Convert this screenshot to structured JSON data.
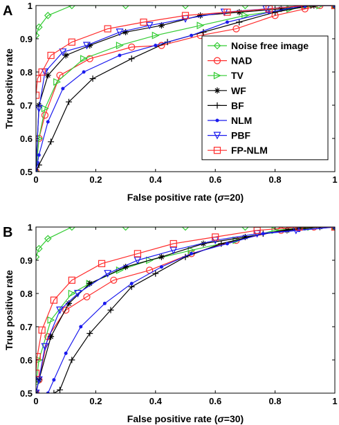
{
  "chart_data": [
    {
      "panel_label": "A",
      "type": "line",
      "xlabel": "False positive rate (σ=20)",
      "xlabel_prefix": "False positive rate (",
      "xlabel_sigma": "σ",
      "xlabel_suffix": "=20)",
      "ylabel": "True positive rate",
      "xlim": [
        0,
        1
      ],
      "ylim": [
        0.5,
        1
      ],
      "xticks": [
        "0",
        "0.2",
        "0.4",
        "0.6",
        "0.8",
        "1"
      ],
      "yticks": [
        "0.5",
        "0.6",
        "0.7",
        "0.8",
        "0.9",
        "1"
      ],
      "grid": false,
      "legend_position": "lower-right",
      "series": [
        {
          "name": "Noise free image",
          "color": "#33cc33",
          "marker": "diamond",
          "x": [
            0,
            0.01,
            0.04,
            0.12,
            0.3,
            0.5,
            0.7,
            0.9,
            1
          ],
          "y": [
            0.91,
            0.935,
            0.97,
            1,
            1,
            1,
            1,
            1,
            1
          ]
        },
        {
          "name": "NAD",
          "color": "#ff2a2a",
          "marker": "circle",
          "x": [
            0,
            0.01,
            0.03,
            0.08,
            0.18,
            0.32,
            0.42,
            0.55,
            0.67,
            0.8,
            0.9,
            0.95,
            1
          ],
          "y": [
            0.5,
            0.6,
            0.67,
            0.79,
            0.84,
            0.875,
            0.88,
            0.91,
            0.93,
            0.97,
            0.99,
            1,
            1
          ]
        },
        {
          "name": "TV",
          "color": "#33cc33",
          "marker": "triangle-right",
          "x": [
            0,
            0.01,
            0.03,
            0.07,
            0.16,
            0.28,
            0.4,
            0.55,
            0.7,
            0.85,
            0.95,
            1
          ],
          "y": [
            0.5,
            0.6,
            0.69,
            0.77,
            0.84,
            0.88,
            0.91,
            0.94,
            0.97,
            0.99,
            1,
            1
          ]
        },
        {
          "name": "WF",
          "color": "#000000",
          "marker": "star",
          "x": [
            0,
            0.01,
            0.04,
            0.1,
            0.18,
            0.3,
            0.42,
            0.55,
            0.68,
            0.82,
            0.93,
            1
          ],
          "y": [
            0.5,
            0.7,
            0.79,
            0.85,
            0.88,
            0.92,
            0.94,
            0.97,
            0.98,
            0.99,
            1,
            1
          ]
        },
        {
          "name": "BF",
          "color": "#000000",
          "marker": "plus",
          "x": [
            0,
            0.01,
            0.05,
            0.11,
            0.19,
            0.32,
            0.44,
            0.56,
            0.68,
            0.8,
            0.92,
            1
          ],
          "y": [
            0.5,
            0.52,
            0.59,
            0.71,
            0.78,
            0.84,
            0.89,
            0.92,
            0.95,
            0.98,
            1,
            1
          ]
        },
        {
          "name": "NLM",
          "color": "#1a1aee",
          "marker": "dot",
          "x": [
            0,
            0.01,
            0.04,
            0.09,
            0.16,
            0.28,
            0.4,
            0.52,
            0.64,
            0.78,
            0.9,
            1
          ],
          "y": [
            0.5,
            0.55,
            0.65,
            0.75,
            0.8,
            0.85,
            0.88,
            0.91,
            0.95,
            0.98,
            1,
            1
          ]
        },
        {
          "name": "PBF",
          "color": "#1a1aee",
          "marker": "triangle-down",
          "x": [
            0,
            0.01,
            0.03,
            0.09,
            0.17,
            0.28,
            0.38,
            0.5,
            0.63,
            0.77,
            0.9,
            1
          ],
          "y": [
            0.52,
            0.69,
            0.8,
            0.86,
            0.88,
            0.92,
            0.94,
            0.96,
            0.98,
            0.99,
            1,
            1
          ]
        },
        {
          "name": "FP-NLM",
          "color": "#ff2a2a",
          "marker": "square",
          "x": [
            0,
            0.005,
            0.02,
            0.05,
            0.12,
            0.24,
            0.36,
            0.5,
            0.64,
            0.78,
            0.9,
            1
          ],
          "y": [
            0.73,
            0.78,
            0.8,
            0.85,
            0.89,
            0.93,
            0.95,
            0.97,
            0.98,
            0.99,
            1,
            1
          ]
        }
      ]
    },
    {
      "panel_label": "B",
      "type": "line",
      "xlabel": "False positive rate (σ=30)",
      "xlabel_prefix": "False positive rate (",
      "xlabel_sigma": "σ",
      "xlabel_suffix": "=30)",
      "ylabel": "True positive rate",
      "xlim": [
        0,
        1
      ],
      "ylim": [
        0.5,
        1
      ],
      "xticks": [
        "0",
        "0.2",
        "0.4",
        "0.6",
        "0.8",
        "1"
      ],
      "yticks": [
        "0.5",
        "0.6",
        "0.7",
        "0.8",
        "0.9",
        "1"
      ],
      "grid": false,
      "series": [
        {
          "name": "Noise free image",
          "color": "#33cc33",
          "marker": "diamond",
          "x": [
            0,
            0.01,
            0.04,
            0.12,
            0.3,
            0.5,
            0.7,
            0.9,
            1
          ],
          "y": [
            0.91,
            0.935,
            0.965,
            1,
            1,
            1,
            1,
            1,
            1
          ]
        },
        {
          "name": "NAD",
          "color": "#ff2a2a",
          "marker": "circle",
          "x": [
            0,
            0.01,
            0.04,
            0.1,
            0.17,
            0.26,
            0.38,
            0.52,
            0.67,
            0.82,
            0.93,
            1
          ],
          "y": [
            0.5,
            0.54,
            0.67,
            0.75,
            0.79,
            0.84,
            0.87,
            0.92,
            0.96,
            0.99,
            1,
            1
          ]
        },
        {
          "name": "TV",
          "color": "#33cc33",
          "marker": "triangle-right",
          "x": [
            0,
            0.01,
            0.05,
            0.12,
            0.18,
            0.28,
            0.38,
            0.52,
            0.67,
            0.8,
            0.92,
            1
          ],
          "y": [
            0.53,
            0.6,
            0.72,
            0.8,
            0.83,
            0.87,
            0.9,
            0.93,
            0.96,
            0.99,
            1,
            1
          ]
        },
        {
          "name": "WF",
          "color": "#000000",
          "marker": "star",
          "x": [
            0,
            0.01,
            0.05,
            0.11,
            0.18,
            0.3,
            0.42,
            0.56,
            0.7,
            0.84,
            0.95,
            1
          ],
          "y": [
            0.5,
            0.54,
            0.67,
            0.77,
            0.83,
            0.88,
            0.91,
            0.95,
            0.97,
            0.99,
            1,
            1
          ]
        },
        {
          "name": "BF",
          "color": "#000000",
          "marker": "plus",
          "x": [
            0.06,
            0.08,
            0.12,
            0.18,
            0.25,
            0.32,
            0.4,
            0.5,
            0.62,
            0.76,
            0.9,
            1
          ],
          "y": [
            0.5,
            0.51,
            0.6,
            0.68,
            0.75,
            0.82,
            0.86,
            0.91,
            0.95,
            0.98,
            1,
            1
          ]
        },
        {
          "name": "NLM",
          "color": "#1a1aee",
          "marker": "dot",
          "x": [
            0.04,
            0.06,
            0.1,
            0.15,
            0.23,
            0.32,
            0.42,
            0.52,
            0.64,
            0.76,
            0.88,
            1
          ],
          "y": [
            0.5,
            0.54,
            0.62,
            0.7,
            0.77,
            0.83,
            0.88,
            0.92,
            0.95,
            0.98,
            0.99,
            1
          ]
        },
        {
          "name": "PBF",
          "color": "#1a1aee",
          "marker": "triangle-down",
          "x": [
            0,
            0.01,
            0.03,
            0.08,
            0.14,
            0.24,
            0.34,
            0.46,
            0.6,
            0.74,
            0.87,
            1
          ],
          "y": [
            0.5,
            0.54,
            0.64,
            0.75,
            0.8,
            0.86,
            0.9,
            0.93,
            0.96,
            0.98,
            0.99,
            1
          ]
        },
        {
          "name": "FP-NLM",
          "color": "#ff2a2a",
          "marker": "square",
          "x": [
            0,
            0.004,
            0.02,
            0.06,
            0.12,
            0.22,
            0.34,
            0.46,
            0.6,
            0.74,
            0.88,
            1
          ],
          "y": [
            0.56,
            0.61,
            0.69,
            0.78,
            0.84,
            0.89,
            0.92,
            0.95,
            0.97,
            0.99,
            1,
            1
          ]
        }
      ]
    }
  ]
}
